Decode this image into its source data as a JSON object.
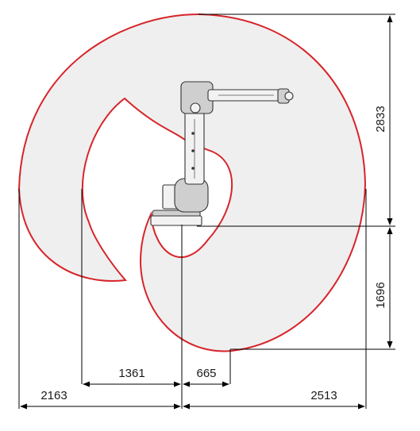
{
  "diagram": {
    "dimensions": {
      "reach_left": "2163",
      "reach_right": "2513",
      "inner_left": "1361",
      "inner_right": "665",
      "height_top": "2833",
      "height_bottom": "1696"
    },
    "colors": {
      "envelope_outline": "#d7242a",
      "envelope_fill": "#efefef",
      "dimension_line": "#000000"
    }
  }
}
